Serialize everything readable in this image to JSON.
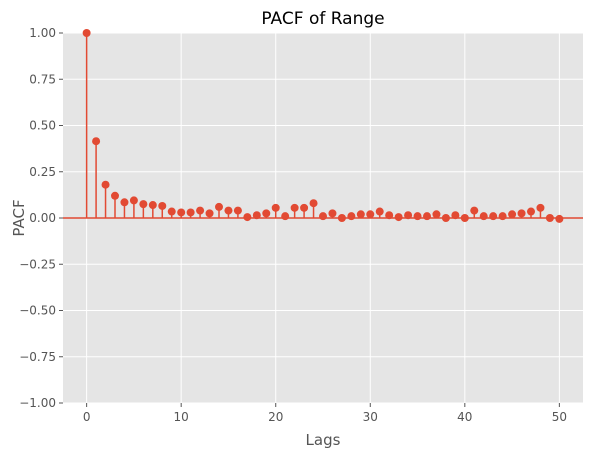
{
  "chart_data": {
    "type": "stem",
    "title": "PACF of Range",
    "xlabel": "Lags",
    "ylabel": "PACF",
    "xlim": [
      -2.5,
      52.5
    ],
    "ylim": [
      -1.0,
      1.0
    ],
    "xticks": [
      0,
      10,
      20,
      30,
      40,
      50
    ],
    "yticks": [
      -1.0,
      -0.75,
      -0.5,
      -0.25,
      0.0,
      0.25,
      0.5,
      0.75,
      1.0
    ],
    "xtick_labels": [
      "0",
      "10",
      "20",
      "30",
      "40",
      "50"
    ],
    "ytick_labels": [
      "−1.00",
      "−0.75",
      "−0.50",
      "−0.25",
      "0.00",
      "0.25",
      "0.50",
      "0.75",
      "1.00"
    ],
    "grid": true,
    "color": "#E24A33",
    "background": "#E5E5E5",
    "lags": [
      0,
      1,
      2,
      3,
      4,
      5,
      6,
      7,
      8,
      9,
      10,
      11,
      12,
      13,
      14,
      15,
      16,
      17,
      18,
      19,
      20,
      21,
      22,
      23,
      24,
      25,
      26,
      27,
      28,
      29,
      30,
      31,
      32,
      33,
      34,
      35,
      36,
      37,
      38,
      39,
      40,
      41,
      42,
      43,
      44,
      45,
      46,
      47,
      48,
      49,
      50
    ],
    "values": [
      1.0,
      0.415,
      0.18,
      0.12,
      0.085,
      0.095,
      0.075,
      0.07,
      0.065,
      0.035,
      0.03,
      0.03,
      0.04,
      0.025,
      0.06,
      0.04,
      0.04,
      0.005,
      0.015,
      0.025,
      0.055,
      0.01,
      0.055,
      0.055,
      0.08,
      0.01,
      0.025,
      0.0,
      0.01,
      0.02,
      0.02,
      0.035,
      0.015,
      0.005,
      0.015,
      0.01,
      0.01,
      0.02,
      0.0,
      0.015,
      0.0,
      0.04,
      0.01,
      0.01,
      0.01,
      0.02,
      0.025,
      0.035,
      0.055,
      0.0,
      -0.005
    ]
  }
}
